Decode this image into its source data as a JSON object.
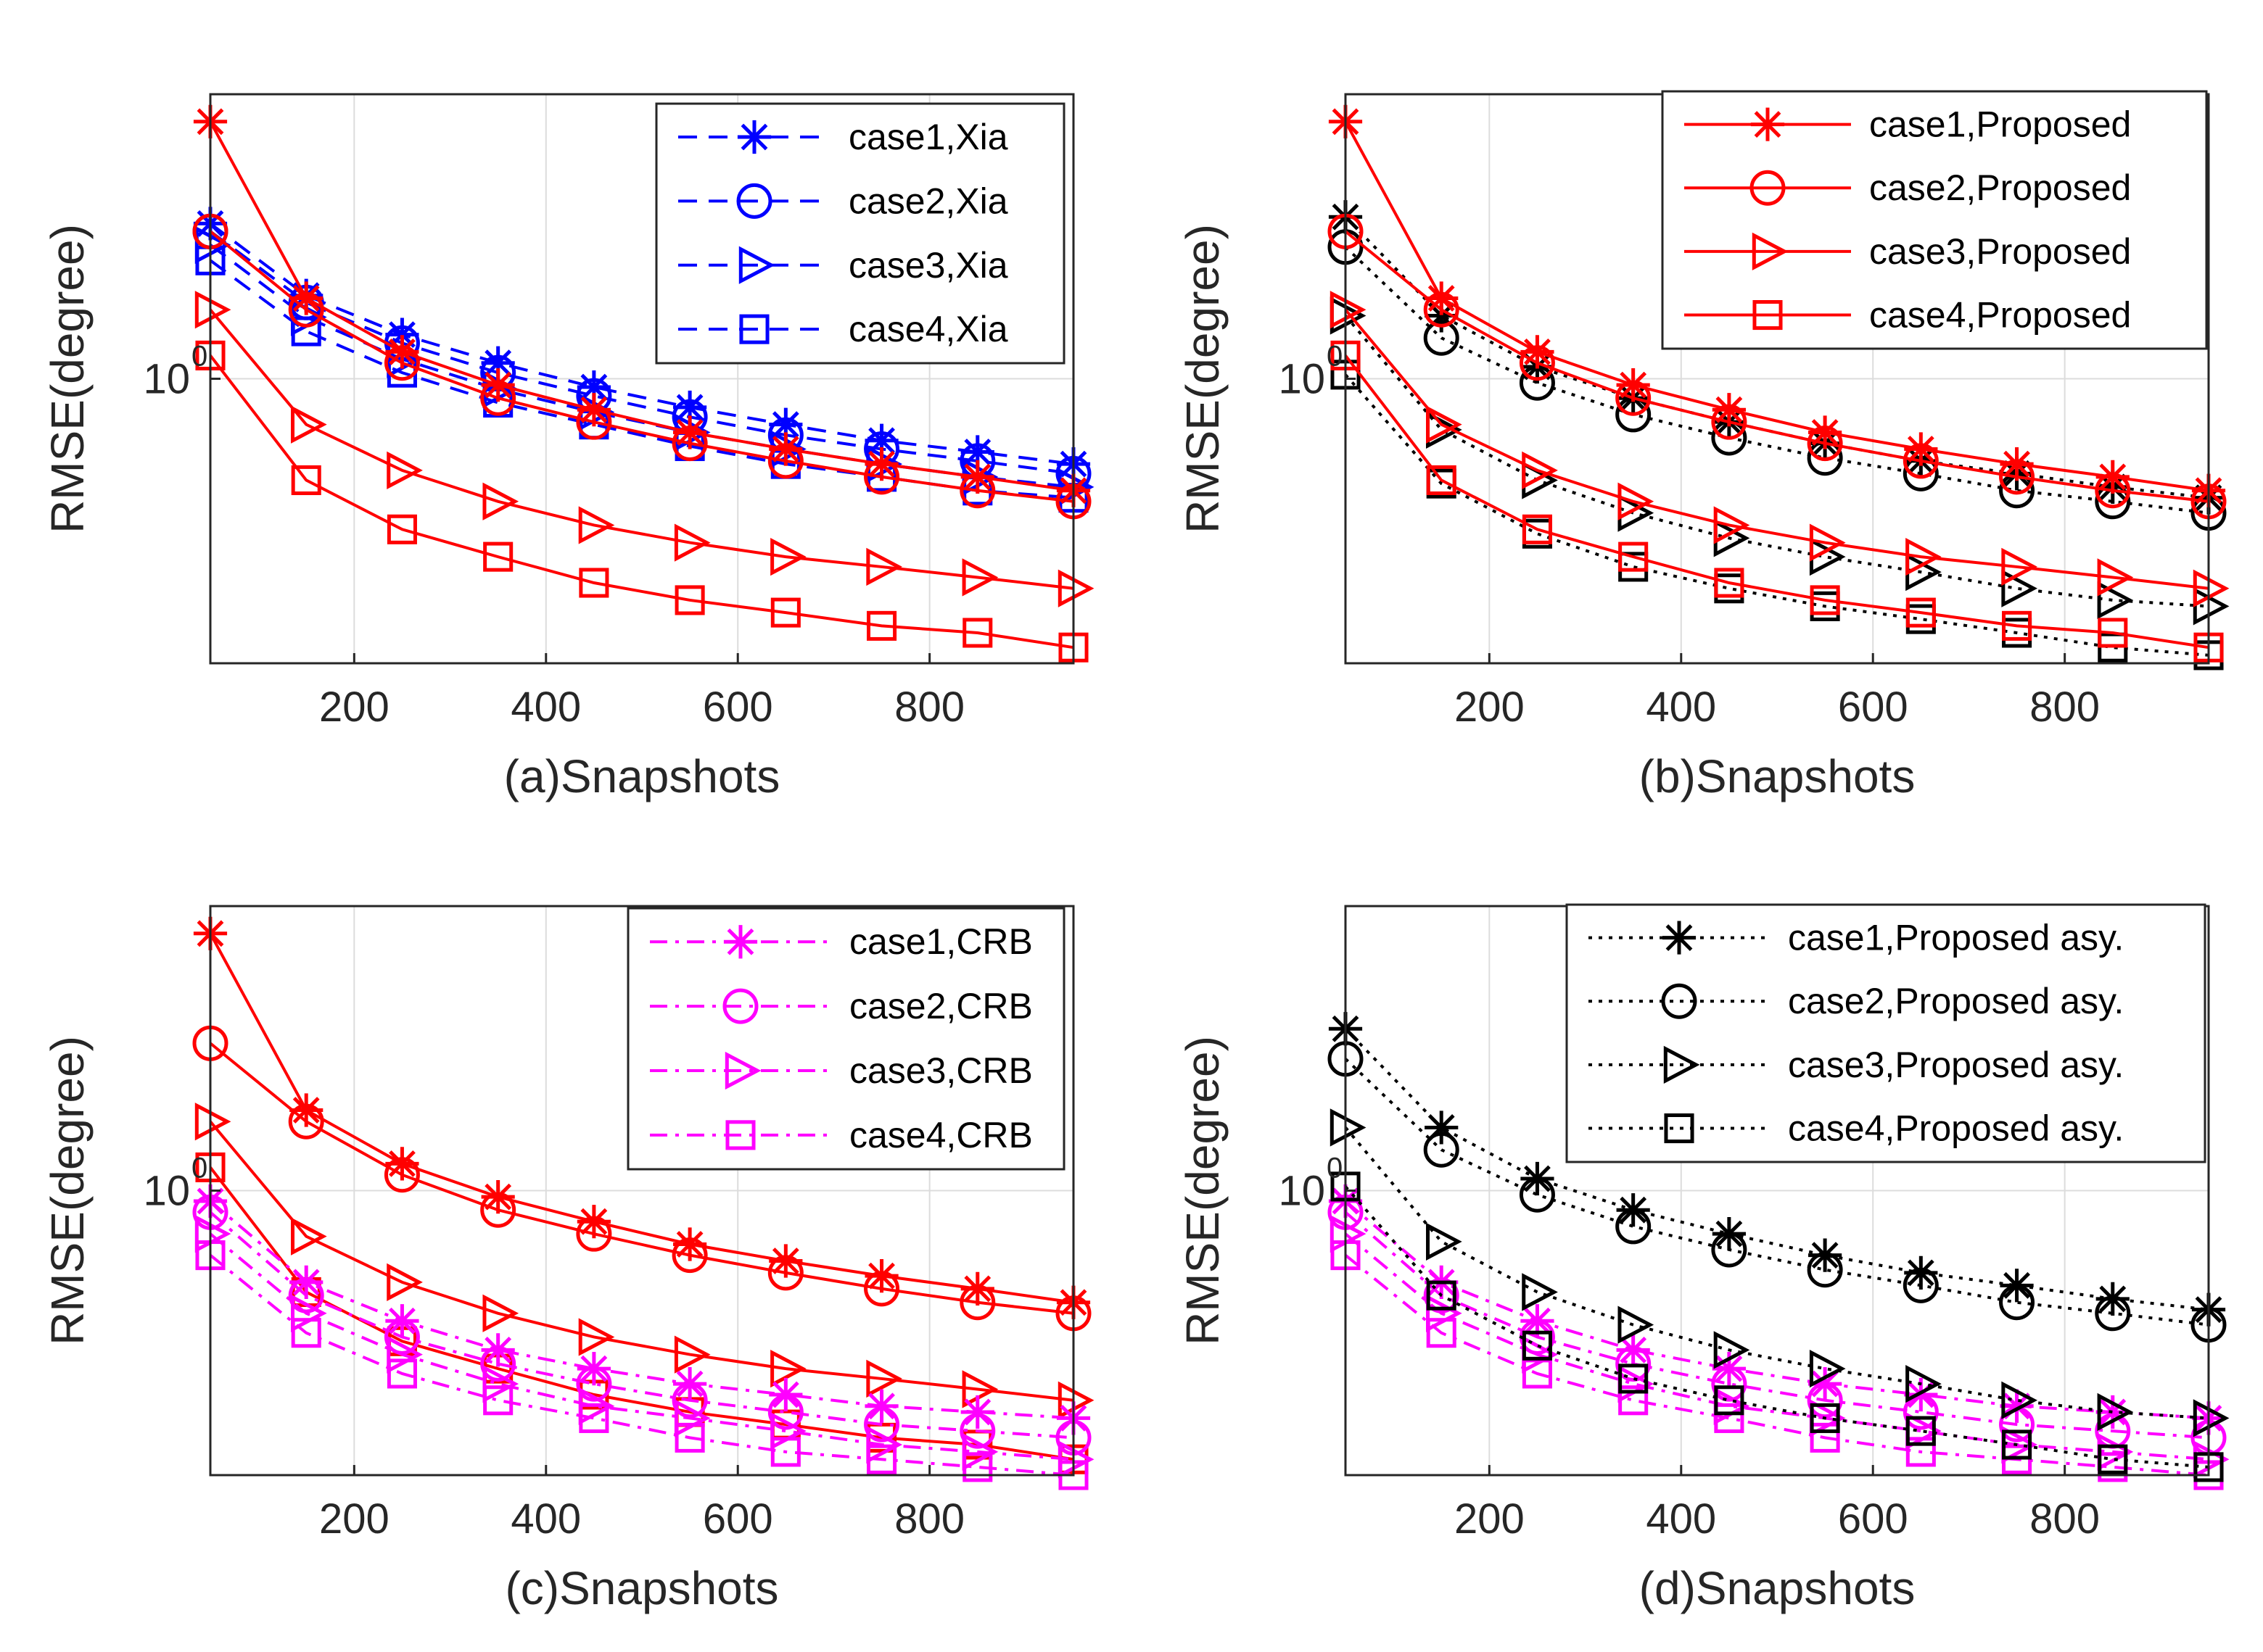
{
  "chart_data": [
    {
      "type": "line",
      "xlabel": "(a)Snapshots",
      "ylabel": "RMSE(degree)",
      "yscale": "log",
      "xlim": [
        50,
        950
      ],
      "ylim": [
        0.25,
        4.0
      ],
      "xticks": [
        200,
        400,
        600,
        800
      ],
      "ytick_base": "10",
      "ytick_exp": "0",
      "legend_position": "top-right",
      "x": [
        50,
        150,
        250,
        350,
        450,
        550,
        650,
        750,
        850,
        950
      ],
      "series": [
        {
          "name": "case1,Xia",
          "color": "#0000ff",
          "style": "dashed",
          "marker": "asterisk",
          "values": [
            2.13,
            1.5,
            1.24,
            1.08,
            0.96,
            0.87,
            0.8,
            0.74,
            0.7,
            0.66
          ]
        },
        {
          "name": "case2,Xia",
          "color": "#0000ff",
          "style": "dashed",
          "marker": "circle",
          "values": [
            2.05,
            1.45,
            1.19,
            1.03,
            0.92,
            0.83,
            0.76,
            0.71,
            0.67,
            0.63
          ]
        },
        {
          "name": "case3,Xia",
          "color": "#0000ff",
          "style": "dashed",
          "marker": "triangle-right",
          "values": [
            1.92,
            1.35,
            1.1,
            0.95,
            0.85,
            0.77,
            0.71,
            0.66,
            0.62,
            0.59
          ]
        },
        {
          "name": "case4,Xia",
          "color": "#0000ff",
          "style": "dashed",
          "marker": "square",
          "values": [
            1.78,
            1.26,
            1.03,
            0.89,
            0.8,
            0.72,
            0.66,
            0.62,
            0.58,
            0.56
          ]
        },
        {
          "name": "case1,Proposed",
          "color": "#ff0000",
          "style": "solid",
          "marker": "asterisk",
          "values": [
            3.5,
            1.48,
            1.14,
            0.97,
            0.86,
            0.77,
            0.71,
            0.66,
            0.62,
            0.58
          ],
          "legend": false
        },
        {
          "name": "case2,Proposed",
          "color": "#ff0000",
          "style": "solid",
          "marker": "circle",
          "values": [
            2.05,
            1.4,
            1.08,
            0.91,
            0.81,
            0.73,
            0.67,
            0.62,
            0.58,
            0.55
          ],
          "legend": false
        },
        {
          "name": "case3,Proposed",
          "color": "#ff0000",
          "style": "solid",
          "marker": "triangle-right",
          "values": [
            1.4,
            0.8,
            0.64,
            0.55,
            0.49,
            0.45,
            0.42,
            0.4,
            0.38,
            0.36
          ],
          "legend": false
        },
        {
          "name": "case4,Proposed",
          "color": "#ff0000",
          "style": "solid",
          "marker": "square",
          "values": [
            1.12,
            0.61,
            0.48,
            0.42,
            0.37,
            0.34,
            0.32,
            0.3,
            0.29,
            0.27
          ],
          "legend": false
        }
      ]
    },
    {
      "type": "line",
      "xlabel": "(b)Snapshots",
      "ylabel": "RMSE(degree)",
      "yscale": "log",
      "xlim": [
        50,
        950
      ],
      "ylim": [
        0.25,
        4.0
      ],
      "xticks": [
        200,
        400,
        600,
        800
      ],
      "ytick_base": "10",
      "ytick_exp": "0",
      "legend_position": "top-right",
      "x": [
        50,
        150,
        250,
        350,
        450,
        550,
        650,
        750,
        850,
        950
      ],
      "series": [
        {
          "name": "case1,Proposed asy.",
          "color": "#000000",
          "style": "dotted",
          "marker": "asterisk",
          "values": [
            2.2,
            1.36,
            1.06,
            0.91,
            0.81,
            0.73,
            0.67,
            0.63,
            0.59,
            0.56
          ],
          "legend": false
        },
        {
          "name": "case2,Proposed asy.",
          "color": "#000000",
          "style": "dotted",
          "marker": "circle",
          "values": [
            1.9,
            1.22,
            0.98,
            0.84,
            0.75,
            0.68,
            0.63,
            0.58,
            0.55,
            0.52
          ],
          "legend": false
        },
        {
          "name": "case3,Proposed asy.",
          "color": "#000000",
          "style": "dotted",
          "marker": "triangle-right",
          "values": [
            1.36,
            0.78,
            0.61,
            0.52,
            0.46,
            0.42,
            0.39,
            0.36,
            0.34,
            0.33
          ],
          "legend": false
        },
        {
          "name": "case4,Proposed asy.",
          "color": "#000000",
          "style": "dotted",
          "marker": "square",
          "values": [
            1.02,
            0.6,
            0.47,
            0.4,
            0.36,
            0.33,
            0.31,
            0.29,
            0.27,
            0.26
          ],
          "legend": false
        },
        {
          "name": "case1,Proposed",
          "color": "#ff0000",
          "style": "solid",
          "marker": "asterisk",
          "values": [
            3.5,
            1.48,
            1.14,
            0.97,
            0.86,
            0.77,
            0.71,
            0.66,
            0.62,
            0.58
          ]
        },
        {
          "name": "case2,Proposed",
          "color": "#ff0000",
          "style": "solid",
          "marker": "circle",
          "values": [
            2.05,
            1.4,
            1.08,
            0.91,
            0.81,
            0.73,
            0.67,
            0.62,
            0.58,
            0.55
          ]
        },
        {
          "name": "case3,Proposed",
          "color": "#ff0000",
          "style": "solid",
          "marker": "triangle-right",
          "values": [
            1.4,
            0.8,
            0.64,
            0.55,
            0.49,
            0.45,
            0.42,
            0.4,
            0.38,
            0.36
          ]
        },
        {
          "name": "case4,Proposed",
          "color": "#ff0000",
          "style": "solid",
          "marker": "square",
          "values": [
            1.12,
            0.61,
            0.48,
            0.42,
            0.37,
            0.34,
            0.32,
            0.3,
            0.29,
            0.27
          ]
        }
      ]
    },
    {
      "type": "line",
      "xlabel": "(c)Snapshots",
      "ylabel": "RMSE(degree)",
      "yscale": "log",
      "xlim": [
        50,
        950
      ],
      "ylim": [
        0.25,
        4.0
      ],
      "xticks": [
        200,
        400,
        600,
        800
      ],
      "ytick_base": "10",
      "ytick_exp": "0",
      "legend_position": "top-right",
      "x": [
        50,
        150,
        250,
        350,
        450,
        550,
        650,
        750,
        850,
        950
      ],
      "series": [
        {
          "name": "case1,Proposed",
          "color": "#ff0000",
          "style": "solid",
          "marker": "asterisk",
          "values": [
            3.5,
            1.48,
            1.14,
            0.97,
            0.86,
            0.77,
            0.71,
            0.66,
            0.62,
            0.58
          ],
          "legend": false
        },
        {
          "name": "case2,Proposed",
          "color": "#ff0000",
          "style": "solid",
          "marker": "circle",
          "values": [
            2.05,
            1.4,
            1.08,
            0.91,
            0.81,
            0.73,
            0.67,
            0.62,
            0.58,
            0.55
          ],
          "legend": false
        },
        {
          "name": "case3,Proposed",
          "color": "#ff0000",
          "style": "solid",
          "marker": "triangle-right",
          "values": [
            1.4,
            0.8,
            0.64,
            0.55,
            0.49,
            0.45,
            0.42,
            0.4,
            0.38,
            0.36
          ],
          "legend": false
        },
        {
          "name": "case4,Proposed",
          "color": "#ff0000",
          "style": "solid",
          "marker": "square",
          "values": [
            1.12,
            0.61,
            0.48,
            0.42,
            0.37,
            0.34,
            0.32,
            0.3,
            0.29,
            0.27
          ],
          "legend": false
        },
        {
          "name": "case1,CRB",
          "color": "#ff00ff",
          "style": "dashdot",
          "marker": "asterisk",
          "values": [
            0.95,
            0.64,
            0.53,
            0.46,
            0.42,
            0.39,
            0.37,
            0.35,
            0.34,
            0.33
          ]
        },
        {
          "name": "case2,CRB",
          "color": "#ff00ff",
          "style": "dashdot",
          "marker": "circle",
          "values": [
            0.9,
            0.6,
            0.49,
            0.43,
            0.39,
            0.36,
            0.34,
            0.32,
            0.31,
            0.3
          ]
        },
        {
          "name": "case3,CRB",
          "color": "#ff00ff",
          "style": "dashdot",
          "marker": "triangle-right",
          "values": [
            0.81,
            0.55,
            0.45,
            0.39,
            0.35,
            0.33,
            0.31,
            0.29,
            0.28,
            0.27
          ]
        },
        {
          "name": "case4,CRB",
          "color": "#ff00ff",
          "style": "dashdot",
          "marker": "square",
          "values": [
            0.73,
            0.5,
            0.41,
            0.36,
            0.33,
            0.3,
            0.28,
            0.27,
            0.26,
            0.25
          ]
        }
      ]
    },
    {
      "type": "line",
      "xlabel": "(d)Snapshots",
      "ylabel": "RMSE(degree)",
      "yscale": "log",
      "xlim": [
        50,
        950
      ],
      "ylim": [
        0.25,
        4.0
      ],
      "xticks": [
        200,
        400,
        600,
        800
      ],
      "ytick_base": "10",
      "ytick_exp": "0",
      "legend_position": "top-right",
      "x": [
        50,
        150,
        250,
        350,
        450,
        550,
        650,
        750,
        850,
        950
      ],
      "series": [
        {
          "name": "case1,CRB",
          "color": "#ff00ff",
          "style": "dashdot",
          "marker": "asterisk",
          "values": [
            0.95,
            0.64,
            0.53,
            0.46,
            0.42,
            0.39,
            0.37,
            0.35,
            0.34,
            0.33
          ],
          "legend": false
        },
        {
          "name": "case2,CRB",
          "color": "#ff00ff",
          "style": "dashdot",
          "marker": "circle",
          "values": [
            0.9,
            0.6,
            0.49,
            0.43,
            0.39,
            0.36,
            0.34,
            0.32,
            0.31,
            0.3
          ],
          "legend": false
        },
        {
          "name": "case3,CRB",
          "color": "#ff00ff",
          "style": "dashdot",
          "marker": "triangle-right",
          "values": [
            0.81,
            0.55,
            0.45,
            0.39,
            0.35,
            0.33,
            0.31,
            0.29,
            0.28,
            0.27
          ],
          "legend": false
        },
        {
          "name": "case4,CRB",
          "color": "#ff00ff",
          "style": "dashdot",
          "marker": "square",
          "values": [
            0.73,
            0.5,
            0.41,
            0.36,
            0.33,
            0.3,
            0.28,
            0.27,
            0.26,
            0.25
          ],
          "legend": false
        },
        {
          "name": "case1,Proposed asy.",
          "color": "#000000",
          "style": "dotted",
          "marker": "asterisk",
          "values": [
            2.2,
            1.36,
            1.06,
            0.91,
            0.81,
            0.73,
            0.67,
            0.63,
            0.59,
            0.56
          ]
        },
        {
          "name": "case2,Proposed asy.",
          "color": "#000000",
          "style": "dotted",
          "marker": "circle",
          "values": [
            1.9,
            1.22,
            0.98,
            0.84,
            0.75,
            0.68,
            0.63,
            0.58,
            0.55,
            0.52
          ]
        },
        {
          "name": "case3,Proposed asy.",
          "color": "#000000",
          "style": "dotted",
          "marker": "triangle-right",
          "values": [
            1.36,
            0.78,
            0.61,
            0.52,
            0.46,
            0.42,
            0.39,
            0.36,
            0.34,
            0.33
          ]
        },
        {
          "name": "case4,Proposed asy.",
          "color": "#000000",
          "style": "dotted",
          "marker": "square",
          "values": [
            1.02,
            0.6,
            0.47,
            0.4,
            0.36,
            0.33,
            0.31,
            0.29,
            0.27,
            0.26
          ]
        }
      ]
    }
  ]
}
